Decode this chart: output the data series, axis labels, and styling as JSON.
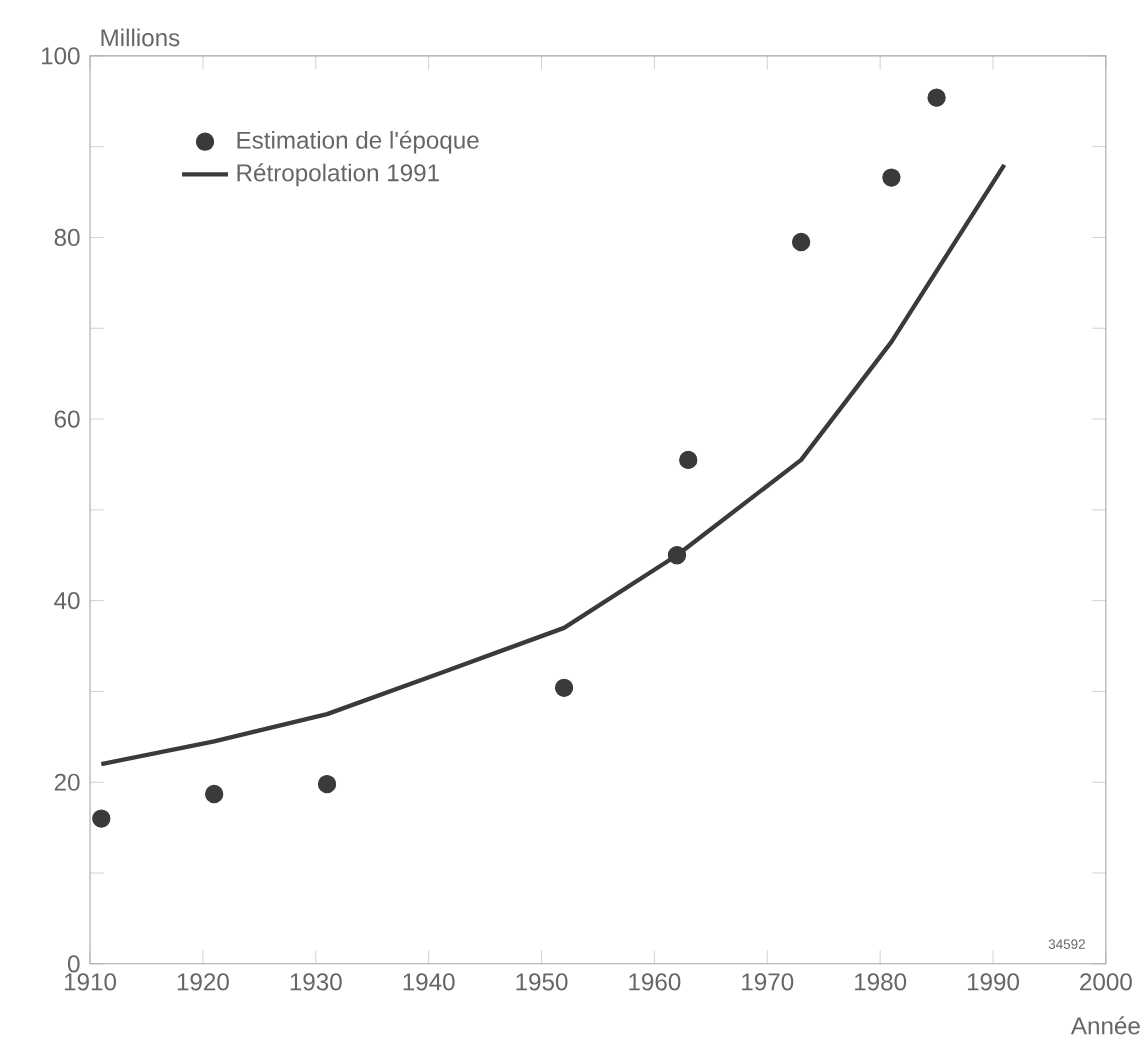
{
  "chart_data": {
    "type": "scatter",
    "ylabel": "Millions",
    "xlabel": "Année",
    "annotations": [
      "34592"
    ],
    "xlim": [
      1910,
      2000
    ],
    "xticks": [
      1910,
      1920,
      1930,
      1940,
      1950,
      1960,
      1970,
      1980,
      1990,
      2000
    ],
    "ylim": [
      0,
      100
    ],
    "yticks": [
      0,
      {
        "value": 10,
        "label": null
      },
      20,
      {
        "value": 30,
        "label": null
      },
      40,
      {
        "value": 50,
        "label": null
      },
      60,
      {
        "value": 70,
        "label": null
      },
      80,
      {
        "value": 90,
        "label": null
      },
      100
    ],
    "legend": "top left",
    "grid": false,
    "series": [
      {
        "name": "Estimation de l'époque",
        "marker": "circle",
        "color": "#3a3a3a",
        "x": [
          1911,
          1921,
          1931,
          1952,
          1962,
          1963,
          1973,
          1981,
          1985
        ],
        "values": [
          16,
          18.7,
          19.8,
          30.4,
          45,
          55.5,
          79.5,
          86.6,
          95.4
        ]
      },
      {
        "name": "Rétropolation 1991",
        "type": "line",
        "marker": "none",
        "line_style": "solid",
        "color": "#3a3a3a",
        "x": [
          1911,
          1921,
          1931,
          1941,
          1952,
          1962,
          1973,
          1981,
          1991
        ],
        "values": [
          22,
          24.5,
          27.5,
          32,
          37,
          45,
          55.5,
          68.5,
          88
        ]
      }
    ]
  }
}
